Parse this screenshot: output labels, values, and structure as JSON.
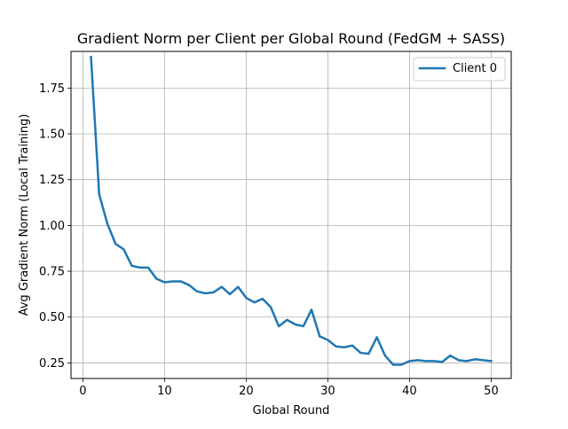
{
  "chart_data": {
    "type": "line",
    "title": "Gradient Norm per Client per Global Round (FedGM + SASS)",
    "xlabel": "Global Round",
    "ylabel": "Avg Gradient Norm (Local Training)",
    "xlim": [
      -1.45,
      52.45
    ],
    "ylim": [
      0.165,
      1.95
    ],
    "grid": true,
    "legend_position": "top-right",
    "xticks": [
      0,
      10,
      20,
      30,
      40,
      50
    ],
    "xtick_labels": [
      "0",
      "10",
      "20",
      "30",
      "40",
      "50"
    ],
    "yticks": [
      0.25,
      0.5,
      0.75,
      1.0,
      1.25,
      1.5,
      1.75
    ],
    "ytick_labels": [
      "0.25",
      "0.50",
      "0.75",
      "1.00",
      "1.25",
      "1.50",
      "1.75"
    ],
    "series": [
      {
        "name": "Client 0",
        "color": "#1f77b4",
        "x": [
          1,
          2,
          3,
          4,
          5,
          6,
          7,
          8,
          9,
          10,
          11,
          12,
          13,
          14,
          15,
          16,
          17,
          18,
          19,
          20,
          21,
          22,
          23,
          24,
          25,
          26,
          27,
          28,
          29,
          30,
          31,
          32,
          33,
          34,
          35,
          36,
          37,
          38,
          39,
          40,
          41,
          42,
          43,
          44,
          45,
          46,
          47,
          48,
          49,
          50
        ],
        "values": [
          1.92,
          1.17,
          1.01,
          0.9,
          0.87,
          0.78,
          0.77,
          0.77,
          0.71,
          0.69,
          0.695,
          0.695,
          0.675,
          0.64,
          0.63,
          0.635,
          0.665,
          0.625,
          0.665,
          0.605,
          0.58,
          0.6,
          0.555,
          0.45,
          0.485,
          0.46,
          0.45,
          0.54,
          0.395,
          0.375,
          0.34,
          0.335,
          0.345,
          0.305,
          0.3,
          0.39,
          0.29,
          0.24,
          0.24,
          0.26,
          0.265,
          0.26,
          0.26,
          0.255,
          0.29,
          0.265,
          0.26,
          0.27,
          0.265,
          0.26
        ]
      }
    ]
  }
}
